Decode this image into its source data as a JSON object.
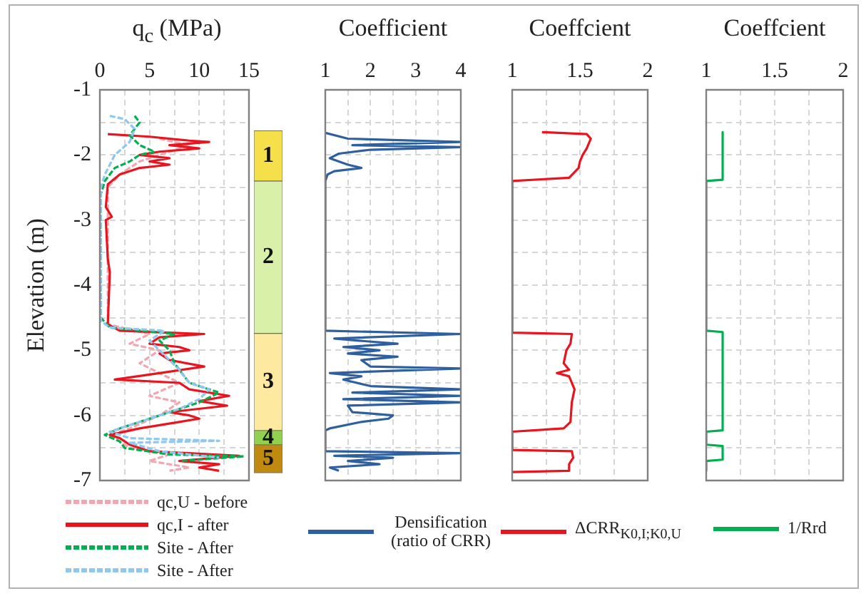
{
  "chart_data": [
    {
      "type": "line",
      "orientation": "horizontal",
      "xlabel": "q$_{c}$ (MPa)",
      "ylabel": "Elevation (m)",
      "xlim": [
        0,
        15
      ],
      "xticks": [
        0,
        {
          "value": 2.5,
          "label": null
        },
        5,
        {
          "value": 7.5,
          "label": null
        },
        10,
        {
          "value": 12.5,
          "label": null
        },
        15
      ],
      "ylim": [
        -7,
        -1
      ],
      "yticks": [
        -1,
        {
          "value": -1.5,
          "label": null
        },
        -2,
        {
          "value": -2.5,
          "label": null
        },
        -3,
        {
          "value": -3.5,
          "label": null
        },
        -4,
        {
          "value": -4.5,
          "label": null
        },
        -5,
        {
          "value": -5.5,
          "label": null
        },
        -6,
        {
          "value": -6.5,
          "label": null
        },
        -7
      ],
      "grid": true,
      "legend": "bottom",
      "marker": "none",
      "series": [
        {
          "name": "qc,U - before",
          "color": "#f4a6b0",
          "line_style": "dashed",
          "x": [
            -1.75,
            -1.85,
            -2.0,
            -2.1,
            -2.3,
            -2.5,
            -4.6,
            -4.75,
            -4.9,
            -5.0,
            -5.2,
            -5.5,
            -5.7,
            -5.8,
            -6.0,
            -6.2,
            -6.3,
            -6.5,
            -6.6,
            -6.7,
            -6.8,
            -6.85
          ],
          "values": [
            6,
            9,
            6,
            4,
            2,
            0.8,
            0.8,
            5,
            3,
            6,
            4,
            8,
            5,
            8,
            6,
            3,
            1,
            3,
            7,
            5,
            9,
            7
          ]
        },
        {
          "name": "qc,I - after",
          "color": "#e8141e",
          "line_style": "solid",
          "x": [
            -1.68,
            -1.72,
            -1.78,
            -1.8,
            -1.85,
            -1.9,
            -1.95,
            -2.0,
            -2.05,
            -2.1,
            -2.15,
            -2.2,
            -2.3,
            -2.45,
            -2.8,
            -2.95,
            -3.0,
            -3.6,
            -3.8,
            -4.6,
            -4.7,
            -4.75,
            -4.8,
            -4.9,
            -4.95,
            -5.0,
            -5.05,
            -5.15,
            -5.25,
            -5.35,
            -5.45,
            -5.5,
            -5.6,
            -5.7,
            -5.78,
            -5.85,
            -5.95,
            -6.0,
            -6.05,
            -6.1,
            -6.2,
            -6.3,
            -6.35,
            -6.45,
            -6.55,
            -6.62,
            -6.7,
            -6.75,
            -6.8,
            -6.85
          ],
          "values": [
            0.8,
            5,
            9,
            11,
            7,
            10,
            6,
            4,
            7,
            5,
            7,
            4,
            2,
            0.8,
            0.6,
            1.2,
            0.6,
            0.8,
            1,
            0.8,
            2,
            10.5,
            6,
            5,
            8,
            9,
            6,
            7,
            10.5,
            6,
            1.5,
            8,
            9,
            13,
            10,
            12.8,
            7,
            9,
            10,
            8,
            4,
            1,
            2,
            3,
            5,
            14,
            8,
            12,
            10,
            12
          ]
        },
        {
          "name": "Site - After",
          "color": "#00b050",
          "line_style": "dashed",
          "x": [
            -1.4,
            -1.5,
            -1.7,
            -1.85,
            -1.95,
            -2.0,
            -2.1,
            -2.2,
            -2.4,
            -2.6,
            -4.5,
            -4.65,
            -4.75,
            -4.85,
            -5.0,
            -5.2,
            -5.5,
            -5.65,
            -5.8,
            -6.0,
            -6.2,
            -6.3,
            -6.4,
            -6.5,
            -6.6,
            -6.63,
            -6.7
          ],
          "values": [
            3.5,
            4,
            3,
            4,
            5.5,
            4,
            3,
            1.5,
            0.5,
            0.1,
            0.1,
            1,
            7.5,
            6,
            7,
            7.5,
            9,
            12,
            10,
            6,
            2,
            0.5,
            2,
            2.5,
            7,
            14.5,
            8
          ]
        },
        {
          "name": "Site - After",
          "color": "#8ec8f0",
          "line_style": "dashed",
          "x": [
            -1.4,
            -1.45,
            -1.6,
            -1.8,
            -2.0,
            -2.15,
            -2.3,
            -2.5,
            -4.55,
            -4.65,
            -4.7,
            -4.85,
            -5.0,
            -5.3,
            -5.5,
            -5.6,
            -5.75,
            -5.9,
            -6.1,
            -6.25,
            -6.35,
            -6.39,
            -6.42,
            -6.55,
            -6.65
          ],
          "values": [
            1,
            2.5,
            3.5,
            3,
            1.5,
            1,
            0.5,
            0.1,
            0.1,
            1,
            6.5,
            5,
            6,
            8,
            9,
            11,
            10,
            8,
            4,
            1,
            3,
            12,
            3,
            6,
            12
          ]
        }
      ]
    },
    {
      "type": "bar",
      "categories": [
        null
      ],
      "ylim": [
        -7,
        -1
      ],
      "tick_labels": false,
      "series": [
        {
          "name": "1",
          "color": "#f5e04b",
          "base": [
            -1.63
          ],
          "values": [
            -0.77
          ]
        },
        {
          "name": "2",
          "color": "#d8f0a8",
          "base": [
            -2.4
          ],
          "values": [
            -2.34
          ]
        },
        {
          "name": "3",
          "color": "#fde9a0",
          "base": [
            -4.74
          ],
          "values": [
            -1.49
          ]
        },
        {
          "name": "4",
          "color": "#92d050",
          "base": [
            -6.23
          ],
          "values": [
            -0.22
          ]
        },
        {
          "name": "5",
          "color": "#c08a10",
          "base": [
            -6.45
          ],
          "values": [
            -0.43
          ]
        }
      ]
    },
    {
      "type": "line",
      "orientation": "horizontal",
      "xlabel": "Coefficient",
      "xlim": [
        1,
        4
      ],
      "xticks": [
        1,
        {
          "value": 1.5,
          "label": null
        },
        2,
        {
          "value": 2.5,
          "label": null
        },
        3,
        {
          "value": 3.5,
          "label": null
        },
        4
      ],
      "ylim": [
        -7,
        -1
      ],
      "yticks": [
        -1,
        {
          "value": -1.5,
          "label": null
        },
        -2,
        {
          "value": -2.5,
          "label": null
        },
        -3,
        {
          "value": -3.5,
          "label": null
        },
        -4,
        {
          "value": -4.5,
          "label": null
        },
        -5,
        {
          "value": -5.5,
          "label": null
        },
        -6,
        {
          "value": -6.5,
          "label": null
        },
        -7
      ],
      "tick_labels": "x",
      "grid": true,
      "legend": "bottom",
      "marker": "none",
      "series": [
        {
          "name": "Densification (ratio of CRR)",
          "color": "#2e5f9e",
          "line_style": "solid",
          "x": [
            -1.66,
            -1.75,
            -1.8,
            -1.85,
            -1.88,
            -1.92,
            -1.98,
            -2.05,
            -2.15,
            -2.2,
            -2.25,
            -2.3,
            -2.4,
            -4.7,
            -4.75,
            -4.82,
            -4.85,
            -4.9,
            -4.95,
            -5.0,
            -5.05,
            -5.1,
            -5.15,
            -5.25,
            -5.28,
            -5.35,
            -5.4,
            -5.45,
            -5.55,
            -5.6,
            -5.65,
            -5.7,
            -5.75,
            -5.8,
            -5.85,
            -5.95,
            -6.0,
            -6.05,
            -6.1,
            -6.2,
            -6.23,
            -6.55,
            -6.58,
            -6.62,
            -6.65,
            -6.7,
            -6.75,
            -6.8,
            -6.85
          ],
          "values": [
            1,
            1.5,
            4,
            1.6,
            4,
            2,
            1.3,
            1.1,
            1.5,
            1.8,
            1.2,
            1.05,
            1,
            1,
            4,
            1.2,
            1.7,
            2.6,
            1.4,
            2.2,
            1.5,
            2.6,
            1.8,
            2,
            4,
            1.1,
            1.8,
            1.4,
            2,
            4,
            1.6,
            4,
            1.4,
            4,
            1.5,
            1.6,
            2.5,
            2.4,
            1.8,
            1.1,
            1,
            1,
            4,
            1.2,
            2.5,
            1.5,
            2.2,
            1.1,
            1.3
          ]
        }
      ]
    },
    {
      "type": "line",
      "orientation": "horizontal",
      "xlabel": "Coeffcient",
      "xlim": [
        1,
        2
      ],
      "xticks": [
        1,
        {
          "value": 1.25,
          "label": null
        },
        1.5,
        {
          "value": 1.75,
          "label": null
        },
        2
      ],
      "ylim": [
        -7,
        -1
      ],
      "yticks": [
        -1,
        {
          "value": -1.5,
          "label": null
        },
        -2,
        {
          "value": -2.5,
          "label": null
        },
        -3,
        {
          "value": -3.5,
          "label": null
        },
        -4,
        {
          "value": -4.5,
          "label": null
        },
        -5,
        {
          "value": -5.5,
          "label": null
        },
        -6,
        {
          "value": -6.5,
          "label": null
        },
        -7
      ],
      "tick_labels": "x",
      "grid": true,
      "legend": "bottom",
      "marker": "none",
      "series": [
        {
          "name": "ΔCRR$_{K0,I;K0,U}$",
          "color": "#e8141e",
          "line_style": "solid",
          "x": [
            -1.65,
            -1.68,
            -1.75,
            -1.9,
            -2.0,
            -2.1,
            -2.2,
            -2.35,
            -2.4,
            -4.73,
            -4.75,
            -4.9,
            -5.0,
            -5.2,
            -5.3,
            -5.35,
            -5.4,
            -5.6,
            -5.8,
            -6.1,
            -6.2,
            -6.25,
            -6.53,
            -6.55,
            -6.65,
            -6.75,
            -6.85,
            -6.87
          ],
          "values": [
            1.22,
            1.55,
            1.58,
            1.55,
            1.52,
            1.5,
            1.49,
            1.42,
            1,
            1,
            1.44,
            1.43,
            1.4,
            1.38,
            1.42,
            1.33,
            1.42,
            1.46,
            1.44,
            1.43,
            1.38,
            1,
            1,
            1.44,
            1.45,
            1.42,
            1.42,
            1
          ]
        }
      ]
    },
    {
      "type": "line",
      "orientation": "horizontal",
      "xlabel": "Coeffcient",
      "xlim": [
        1,
        2
      ],
      "xticks": [
        1,
        {
          "value": 1.25,
          "label": null
        },
        1.5,
        {
          "value": 1.75,
          "label": null
        },
        2
      ],
      "ylim": [
        -7,
        -1
      ],
      "yticks": [
        -1,
        {
          "value": -1.5,
          "label": null
        },
        -2,
        {
          "value": -2.5,
          "label": null
        },
        -3,
        {
          "value": -3.5,
          "label": null
        },
        -4,
        {
          "value": -4.5,
          "label": null
        },
        -5,
        {
          "value": -5.5,
          "label": null
        },
        -6,
        {
          "value": -6.5,
          "label": null
        },
        -7
      ],
      "tick_labels": "x",
      "grid": true,
      "legend": "bottom",
      "marker": "none",
      "series": [
        {
          "name": "1/Rrd",
          "color": "#00b050",
          "line_style": "solid",
          "x": [
            -1.65,
            -2.38,
            -2.4,
            -4.7,
            -4.72,
            -6.23,
            -6.25,
            -6.45,
            -6.47,
            -6.68,
            -6.7,
            -6.85
          ],
          "values": [
            1.12,
            1.12,
            1,
            1,
            1.12,
            1.12,
            1,
            1,
            1.12,
            1.12,
            1,
            1
          ]
        }
      ]
    }
  ]
}
